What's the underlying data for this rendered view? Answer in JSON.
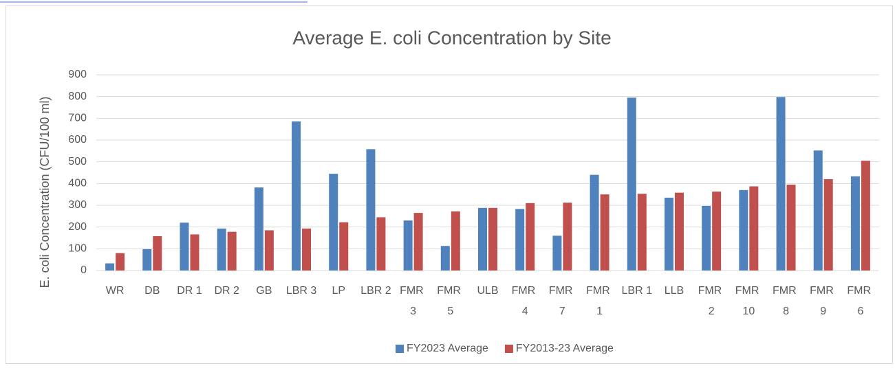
{
  "chart_data": {
    "type": "bar",
    "title": "Average E. coli Concentration by Site",
    "ylabel": "E. coli Concentration (CFU/100 ml)",
    "categories": [
      "WR",
      "DB",
      "DR 1",
      "DR 2",
      "GB",
      "LBR 3",
      "LP",
      "LBR 2",
      "FMR 3",
      "FMR 5",
      "ULB",
      "FMR 4",
      "FMR 7",
      "FMR 1",
      "LBR 1",
      "LLB",
      "FMR 2",
      "FMR 10",
      "FMR 8",
      "FMR 9",
      "FMR 6"
    ],
    "series": [
      {
        "name": "FY2023 Average",
        "color": "#4f81bd",
        "values": [
          33,
          98,
          220,
          193,
          382,
          686,
          445,
          558,
          230,
          113,
          288,
          283,
          160,
          440,
          795,
          335,
          297,
          370,
          798,
          552,
          433
        ]
      },
      {
        "name": "FY2013-23 Average",
        "color": "#c0504d",
        "values": [
          80,
          158,
          166,
          178,
          185,
          193,
          222,
          245,
          265,
          272,
          288,
          310,
          312,
          350,
          353,
          358,
          363,
          387,
          395,
          420,
          505
        ]
      }
    ],
    "ylim": [
      0,
      900
    ],
    "yticks": [
      0,
      100,
      200,
      300,
      400,
      500,
      600,
      700,
      800,
      900
    ],
    "grid": true,
    "legend": "bottom"
  }
}
